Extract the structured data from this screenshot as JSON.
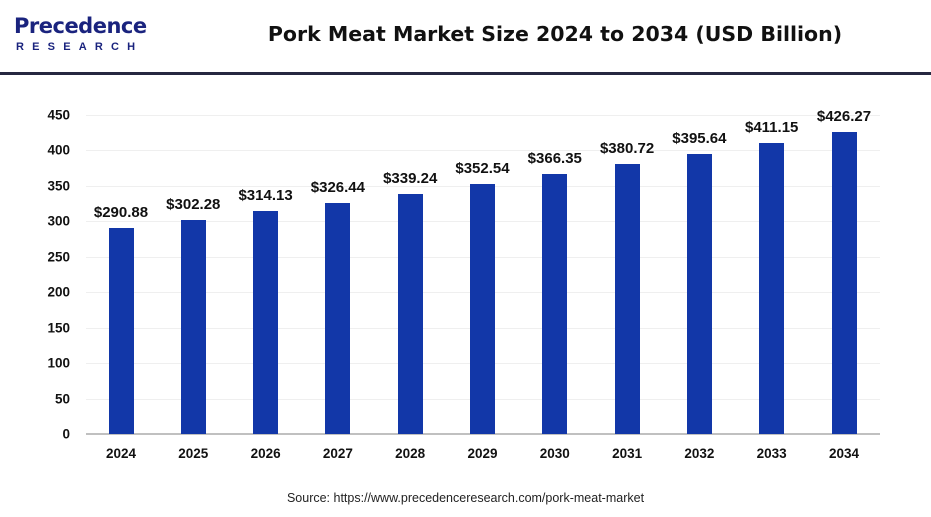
{
  "header": {
    "logo_top": "Precedence",
    "logo_bottom": "RESEARCH",
    "title": "Pork Meat Market Size 2024 to 2034 (USD Billion)"
  },
  "footer": {
    "source": "Source: https://www.precedenceresearch.com/pork-meat-market"
  },
  "colors": {
    "bar": "#1237a8",
    "brand_dark": "#1a237e",
    "divider": "#262840"
  },
  "chart_data": {
    "type": "bar",
    "title": "Pork Meat Market Size 2024 to 2034 (USD Billion)",
    "xlabel": "",
    "ylabel": "",
    "categories": [
      "2024",
      "2025",
      "2026",
      "2027",
      "2028",
      "2029",
      "2030",
      "2031",
      "2032",
      "2033",
      "2034"
    ],
    "values": [
      290.88,
      302.28,
      314.13,
      326.44,
      339.24,
      352.54,
      366.35,
      380.72,
      395.64,
      411.15,
      426.27
    ],
    "labels": [
      "$290.88",
      "$302.28",
      "$314.13",
      "$326.44",
      "$339.24",
      "$352.54",
      "$366.35",
      "$380.72",
      "$395.64",
      "$411.15",
      "$426.27"
    ],
    "ylim": [
      0,
      450
    ],
    "yticks": [
      0,
      50,
      100,
      150,
      200,
      250,
      300,
      350,
      400,
      450
    ],
    "grid": true,
    "legend": "none"
  }
}
